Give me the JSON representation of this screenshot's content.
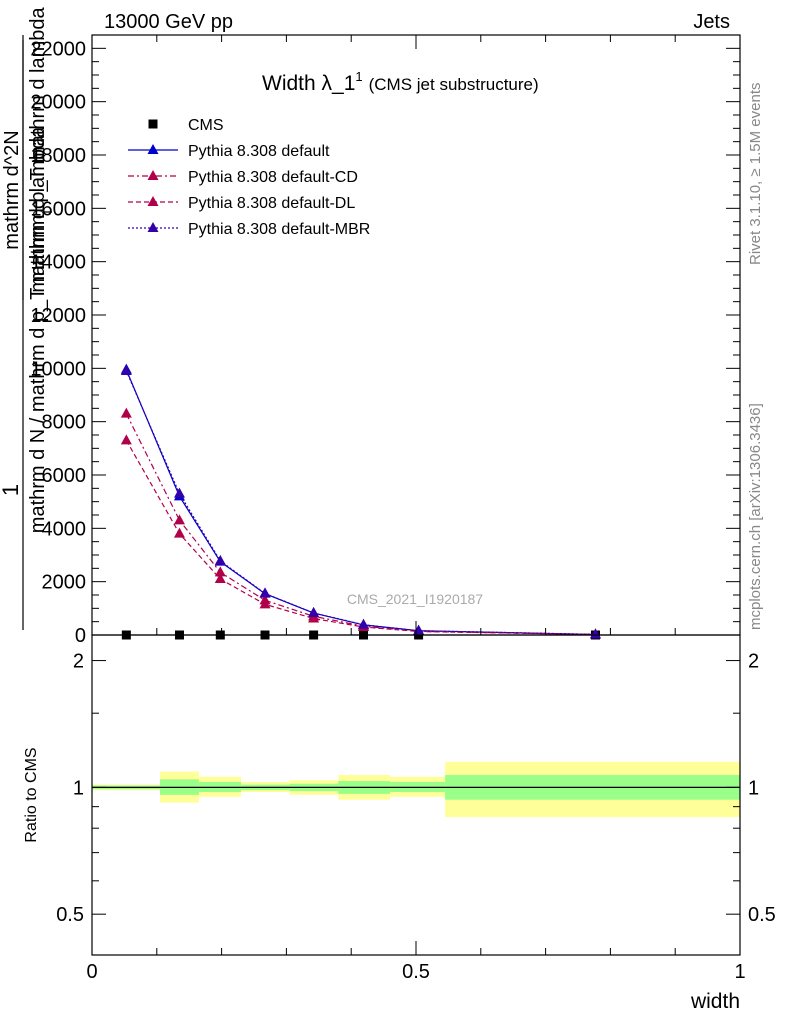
{
  "header": {
    "left": "13000 GeV pp",
    "right": "Jets"
  },
  "side_labels": {
    "rivet": "Rivet 3.1.10, ≥ 1.5M events",
    "mcplots": "mcplots.cern.ch [arXiv:1306.3436]"
  },
  "watermark": "CMS_2021_I1920187",
  "chart_data": [
    {
      "type": "line",
      "title": "Width λ_1",
      "title_superscript": "1",
      "subtitle": "(CMS jet substructure)",
      "ylabel_lines": [
        "1",
        "mathrm d N / mathrm d p_T mathrm d lambda",
        "mathrm d^2N",
        "mathrm d p_T mathrm d lambda"
      ],
      "ylabel_subscript": "T",
      "xlim": [
        0,
        1
      ],
      "ylim": [
        0,
        22500
      ],
      "yticks": [
        0,
        2000,
        4000,
        6000,
        8000,
        10000,
        12000,
        14000,
        16000,
        18000,
        20000,
        22000
      ],
      "ytick_labels": [
        "0",
        "2000",
        "4000",
        "6000",
        "8000",
        "10000",
        "12000",
        "14000",
        "16000",
        "18000",
        "20000",
        "22000"
      ],
      "legend_position": "top-left",
      "series": [
        {
          "name": "CMS",
          "marker": "square",
          "color": "#000000",
          "x": [
            0.053,
            0.135,
            0.198,
            0.267,
            0.342,
            0.419,
            0.504,
            0.777
          ],
          "y": [
            0,
            0,
            0,
            0,
            0,
            0,
            0,
            0
          ]
        },
        {
          "name": "Pythia 8.308 default",
          "marker": "triangle",
          "line": "solid",
          "color": "#0000cc",
          "x": [
            0.053,
            0.135,
            0.198,
            0.267,
            0.342,
            0.419,
            0.504,
            0.777
          ],
          "y": [
            9950,
            5200,
            2750,
            1550,
            820,
            380,
            160,
            20
          ]
        },
        {
          "name": "Pythia 8.308 default-CD",
          "marker": "triangle",
          "line": "dashdot",
          "color": "#b0004a",
          "x": [
            0.053,
            0.135,
            0.198,
            0.267,
            0.342,
            0.419,
            0.504,
            0.777
          ],
          "y": [
            8300,
            4300,
            2350,
            1300,
            700,
            330,
            140,
            18
          ]
        },
        {
          "name": "Pythia 8.308 default-DL",
          "marker": "triangle",
          "line": "dashed",
          "color": "#b0004a",
          "x": [
            0.053,
            0.135,
            0.198,
            0.267,
            0.342,
            0.419,
            0.504,
            0.777
          ],
          "y": [
            7300,
            3800,
            2100,
            1150,
            620,
            300,
            130,
            17
          ]
        },
        {
          "name": "Pythia 8.308 default-MBR",
          "marker": "triangle",
          "line": "dotted",
          "color": "#3300aa",
          "x": [
            0.053,
            0.135,
            0.198,
            0.267,
            0.342,
            0.419,
            0.504,
            0.777
          ],
          "y": [
            9900,
            5300,
            2780,
            1560,
            830,
            385,
            162,
            21
          ]
        }
      ]
    },
    {
      "type": "area",
      "ylabel": "Ratio to CMS",
      "xlabel": "width",
      "xlim": [
        0,
        1
      ],
      "ylim": [
        0.4,
        2.3
      ],
      "log_y": true,
      "xticks": [
        0,
        0.5,
        1
      ],
      "xtick_labels": [
        "0",
        "0.5",
        "1"
      ],
      "yticks": [
        0.5,
        1,
        2
      ],
      "ytick_labels": [
        "0.5",
        "1",
        "2"
      ],
      "bins": [
        {
          "lo": 0.0,
          "hi": 0.105,
          "green": [
            0.99,
            1.01
          ],
          "yellow": [
            0.985,
            1.015
          ]
        },
        {
          "lo": 0.105,
          "hi": 0.165,
          "green": [
            0.96,
            1.045
          ],
          "yellow": [
            0.92,
            1.09
          ]
        },
        {
          "lo": 0.165,
          "hi": 0.23,
          "green": [
            0.975,
            1.03
          ],
          "yellow": [
            0.95,
            1.06
          ]
        },
        {
          "lo": 0.23,
          "hi": 0.305,
          "green": [
            0.985,
            1.015
          ],
          "yellow": [
            0.975,
            1.03
          ]
        },
        {
          "lo": 0.305,
          "hi": 0.38,
          "green": [
            0.98,
            1.02
          ],
          "yellow": [
            0.96,
            1.04
          ]
        },
        {
          "lo": 0.38,
          "hi": 0.46,
          "green": [
            0.965,
            1.035
          ],
          "yellow": [
            0.935,
            1.07
          ]
        },
        {
          "lo": 0.46,
          "hi": 0.545,
          "green": [
            0.975,
            1.03
          ],
          "yellow": [
            0.95,
            1.06
          ]
        },
        {
          "lo": 0.545,
          "hi": 1.0,
          "green": [
            0.935,
            1.07
          ],
          "yellow": [
            0.85,
            1.15
          ]
        }
      ]
    }
  ]
}
